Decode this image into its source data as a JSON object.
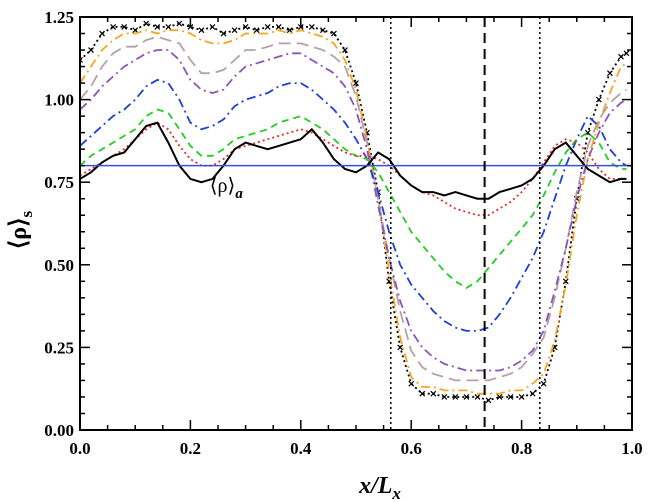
{
  "chart_data": {
    "type": "line",
    "xlabel": "x/L",
    "xlabel_sub": "x",
    "ylabel": "⟨ρ⟩",
    "ylabel_sub": "s",
    "xlim": [
      0.0,
      1.0
    ],
    "ylim": [
      0.0,
      1.25
    ],
    "x_ticks": [
      0.0,
      0.2,
      0.4,
      0.6,
      0.8,
      1.0
    ],
    "x_tick_labels": [
      "0.0",
      "0.2",
      "0.4",
      "0.6",
      "0.8",
      "1.0"
    ],
    "y_ticks": [
      0.0,
      0.25,
      0.5,
      0.75,
      1.0,
      1.25
    ],
    "y_tick_labels": [
      "0.00",
      "0.25",
      "0.50",
      "0.75",
      "1.00",
      "1.25"
    ],
    "grid": false,
    "annotations": [
      {
        "text": "⟨ρ⟩",
        "sub": "a",
        "x": 0.235,
        "y": 0.72
      }
    ],
    "reference_lines": [
      {
        "name": "average density",
        "orientation": "horizontal",
        "value": 0.8,
        "color": "#3b4fd9",
        "style": "solid"
      },
      {
        "name": "left dotted marker",
        "orientation": "vertical",
        "value": 0.563,
        "color": "#000000",
        "style": "dotted"
      },
      {
        "name": "center dashed marker",
        "orientation": "vertical",
        "value": 0.733,
        "color": "#000000",
        "style": "dashed"
      },
      {
        "name": "right dotted marker",
        "orientation": "vertical",
        "value": 0.833,
        "color": "#000000",
        "style": "dotted"
      }
    ],
    "series": [
      {
        "name": "crosses",
        "color": "#000000",
        "style": "dotted",
        "marker": "x",
        "x": [
          0.0,
          0.02,
          0.04,
          0.06,
          0.08,
          0.1,
          0.12,
          0.14,
          0.16,
          0.18,
          0.2,
          0.22,
          0.24,
          0.26,
          0.28,
          0.3,
          0.32,
          0.34,
          0.36,
          0.38,
          0.4,
          0.42,
          0.44,
          0.46,
          0.48,
          0.5,
          0.52,
          0.54,
          0.56,
          0.58,
          0.6,
          0.62,
          0.64,
          0.66,
          0.68,
          0.7,
          0.72,
          0.74,
          0.76,
          0.78,
          0.8,
          0.82,
          0.84,
          0.86,
          0.88,
          0.9,
          0.92,
          0.94,
          0.96,
          0.98,
          0.99
        ],
        "y": [
          1.12,
          1.15,
          1.2,
          1.22,
          1.22,
          1.21,
          1.23,
          1.22,
          1.22,
          1.23,
          1.22,
          1.21,
          1.22,
          1.2,
          1.21,
          1.22,
          1.21,
          1.22,
          1.22,
          1.21,
          1.22,
          1.22,
          1.21,
          1.2,
          1.15,
          1.05,
          0.9,
          0.72,
          0.45,
          0.25,
          0.14,
          0.11,
          0.11,
          0.1,
          0.1,
          0.1,
          0.1,
          0.09,
          0.1,
          0.1,
          0.1,
          0.11,
          0.14,
          0.25,
          0.45,
          0.7,
          0.9,
          1.0,
          1.08,
          1.13,
          1.14
        ]
      },
      {
        "name": "orange dash-dot",
        "color": "#f5a623",
        "style": "dashdot",
        "x": [
          0.0,
          0.02,
          0.04,
          0.06,
          0.08,
          0.1,
          0.12,
          0.14,
          0.16,
          0.18,
          0.2,
          0.22,
          0.24,
          0.26,
          0.28,
          0.3,
          0.32,
          0.34,
          0.36,
          0.38,
          0.4,
          0.42,
          0.44,
          0.46,
          0.48,
          0.5,
          0.52,
          0.54,
          0.56,
          0.58,
          0.6,
          0.62,
          0.64,
          0.66,
          0.68,
          0.7,
          0.72,
          0.74,
          0.76,
          0.78,
          0.8,
          0.82,
          0.84,
          0.86,
          0.88,
          0.9,
          0.92,
          0.94,
          0.96,
          0.98,
          0.99
        ],
        "y": [
          1.05,
          1.1,
          1.15,
          1.18,
          1.2,
          1.2,
          1.21,
          1.2,
          1.21,
          1.21,
          1.2,
          1.18,
          1.17,
          1.17,
          1.18,
          1.2,
          1.2,
          1.2,
          1.21,
          1.2,
          1.21,
          1.2,
          1.19,
          1.17,
          1.12,
          1.03,
          0.88,
          0.7,
          0.48,
          0.28,
          0.16,
          0.13,
          0.13,
          0.12,
          0.12,
          0.12,
          0.11,
          0.11,
          0.11,
          0.12,
          0.12,
          0.14,
          0.17,
          0.27,
          0.44,
          0.65,
          0.82,
          0.93,
          1.02,
          1.1,
          1.11
        ]
      },
      {
        "name": "gray long-dash",
        "color": "#b5a0a6",
        "style": "longdash",
        "x": [
          0.0,
          0.02,
          0.04,
          0.06,
          0.08,
          0.1,
          0.12,
          0.14,
          0.16,
          0.18,
          0.2,
          0.22,
          0.24,
          0.26,
          0.28,
          0.3,
          0.32,
          0.34,
          0.36,
          0.38,
          0.4,
          0.42,
          0.44,
          0.46,
          0.48,
          0.5,
          0.52,
          0.54,
          0.56,
          0.58,
          0.6,
          0.62,
          0.64,
          0.66,
          0.68,
          0.7,
          0.72,
          0.74,
          0.76,
          0.78,
          0.8,
          0.82,
          0.84,
          0.86,
          0.88,
          0.9,
          0.92,
          0.94,
          0.96,
          0.98,
          0.99
        ],
        "y": [
          1.0,
          1.04,
          1.1,
          1.14,
          1.16,
          1.16,
          1.18,
          1.19,
          1.18,
          1.17,
          1.12,
          1.08,
          1.08,
          1.09,
          1.12,
          1.15,
          1.15,
          1.16,
          1.17,
          1.17,
          1.17,
          1.16,
          1.15,
          1.13,
          1.1,
          1.01,
          0.87,
          0.7,
          0.52,
          0.36,
          0.24,
          0.19,
          0.17,
          0.16,
          0.15,
          0.15,
          0.15,
          0.15,
          0.16,
          0.17,
          0.19,
          0.23,
          0.28,
          0.4,
          0.55,
          0.72,
          0.86,
          0.94,
          0.99,
          1.02,
          1.03
        ]
      },
      {
        "name": "purple dash-dot",
        "color": "#8b55b8",
        "style": "dashdot",
        "x": [
          0.0,
          0.02,
          0.04,
          0.06,
          0.08,
          0.1,
          0.12,
          0.14,
          0.16,
          0.18,
          0.2,
          0.22,
          0.24,
          0.26,
          0.28,
          0.3,
          0.32,
          0.34,
          0.36,
          0.38,
          0.4,
          0.42,
          0.44,
          0.46,
          0.48,
          0.5,
          0.52,
          0.54,
          0.56,
          0.58,
          0.6,
          0.62,
          0.64,
          0.66,
          0.68,
          0.7,
          0.72,
          0.74,
          0.76,
          0.78,
          0.8,
          0.82,
          0.84,
          0.86,
          0.88,
          0.9,
          0.92,
          0.94,
          0.96,
          0.98,
          0.99
        ],
        "y": [
          0.97,
          1.0,
          1.04,
          1.07,
          1.1,
          1.12,
          1.14,
          1.15,
          1.15,
          1.12,
          1.06,
          1.03,
          1.02,
          1.03,
          1.07,
          1.1,
          1.11,
          1.12,
          1.13,
          1.14,
          1.14,
          1.12,
          1.1,
          1.08,
          1.04,
          0.97,
          0.85,
          0.68,
          0.52,
          0.39,
          0.3,
          0.25,
          0.22,
          0.2,
          0.19,
          0.18,
          0.18,
          0.18,
          0.18,
          0.19,
          0.21,
          0.24,
          0.3,
          0.42,
          0.55,
          0.7,
          0.82,
          0.9,
          0.96,
          0.99,
          1.0
        ]
      },
      {
        "name": "blue dash-dot",
        "color": "#1f3fd6",
        "style": "dashdot",
        "x": [
          0.0,
          0.02,
          0.04,
          0.06,
          0.08,
          0.1,
          0.12,
          0.14,
          0.16,
          0.18,
          0.2,
          0.22,
          0.24,
          0.26,
          0.28,
          0.3,
          0.32,
          0.34,
          0.36,
          0.38,
          0.4,
          0.42,
          0.44,
          0.46,
          0.48,
          0.5,
          0.52,
          0.54,
          0.56,
          0.58,
          0.6,
          0.62,
          0.64,
          0.66,
          0.68,
          0.7,
          0.72,
          0.74,
          0.76,
          0.78,
          0.8,
          0.82,
          0.84,
          0.86,
          0.88,
          0.9,
          0.92,
          0.94,
          0.96,
          0.98,
          0.99
        ],
        "y": [
          0.86,
          0.89,
          0.92,
          0.95,
          0.97,
          1.0,
          1.04,
          1.06,
          1.05,
          1.0,
          0.93,
          0.91,
          0.92,
          0.94,
          0.98,
          1.0,
          1.01,
          1.02,
          1.04,
          1.05,
          1.05,
          1.03,
          1.0,
          0.97,
          0.93,
          0.88,
          0.82,
          0.72,
          0.6,
          0.5,
          0.44,
          0.4,
          0.36,
          0.33,
          0.31,
          0.3,
          0.3,
          0.31,
          0.35,
          0.4,
          0.46,
          0.52,
          0.6,
          0.7,
          0.8,
          0.88,
          0.95,
          0.92,
          0.85,
          0.81,
          0.8
        ]
      },
      {
        "name": "green dashed",
        "color": "#22cc22",
        "style": "dashed",
        "x": [
          0.0,
          0.02,
          0.04,
          0.06,
          0.08,
          0.1,
          0.12,
          0.14,
          0.16,
          0.18,
          0.2,
          0.22,
          0.24,
          0.26,
          0.28,
          0.3,
          0.32,
          0.34,
          0.36,
          0.38,
          0.4,
          0.42,
          0.44,
          0.46,
          0.48,
          0.5,
          0.52,
          0.54,
          0.56,
          0.58,
          0.6,
          0.62,
          0.64,
          0.66,
          0.68,
          0.7,
          0.72,
          0.74,
          0.76,
          0.78,
          0.8,
          0.82,
          0.84,
          0.86,
          0.88,
          0.9,
          0.92,
          0.94,
          0.96,
          0.98,
          0.99
        ],
        "y": [
          0.8,
          0.83,
          0.85,
          0.87,
          0.89,
          0.91,
          0.95,
          0.97,
          0.96,
          0.91,
          0.86,
          0.83,
          0.83,
          0.85,
          0.88,
          0.89,
          0.9,
          0.91,
          0.93,
          0.94,
          0.95,
          0.93,
          0.91,
          0.88,
          0.85,
          0.83,
          0.82,
          0.78,
          0.72,
          0.66,
          0.6,
          0.56,
          0.52,
          0.48,
          0.45,
          0.43,
          0.45,
          0.49,
          0.53,
          0.57,
          0.61,
          0.65,
          0.71,
          0.78,
          0.84,
          0.88,
          0.9,
          0.87,
          0.81,
          0.79,
          0.79
        ]
      },
      {
        "name": "red dotted",
        "color": "#e0302a",
        "style": "dotted",
        "x": [
          0.0,
          0.02,
          0.04,
          0.06,
          0.08,
          0.1,
          0.12,
          0.14,
          0.16,
          0.18,
          0.2,
          0.22,
          0.24,
          0.26,
          0.28,
          0.3,
          0.32,
          0.34,
          0.36,
          0.38,
          0.4,
          0.42,
          0.44,
          0.46,
          0.48,
          0.5,
          0.52,
          0.54,
          0.56,
          0.58,
          0.6,
          0.62,
          0.64,
          0.66,
          0.68,
          0.7,
          0.72,
          0.74,
          0.76,
          0.78,
          0.8,
          0.82,
          0.84,
          0.86,
          0.88,
          0.9,
          0.92,
          0.94,
          0.96,
          0.98,
          0.99
        ],
        "y": [
          0.77,
          0.79,
          0.81,
          0.83,
          0.85,
          0.88,
          0.91,
          0.93,
          0.91,
          0.86,
          0.82,
          0.8,
          0.8,
          0.82,
          0.85,
          0.86,
          0.87,
          0.88,
          0.89,
          0.9,
          0.91,
          0.9,
          0.88,
          0.86,
          0.84,
          0.83,
          0.83,
          0.82,
          0.8,
          0.77,
          0.74,
          0.72,
          0.71,
          0.69,
          0.67,
          0.66,
          0.65,
          0.65,
          0.67,
          0.69,
          0.72,
          0.76,
          0.81,
          0.86,
          0.88,
          0.87,
          0.84,
          0.79,
          0.76,
          0.76,
          0.76
        ]
      },
      {
        "name": "black solid",
        "color": "#000000",
        "style": "solid",
        "x": [
          0.0,
          0.02,
          0.04,
          0.06,
          0.08,
          0.1,
          0.12,
          0.14,
          0.16,
          0.18,
          0.2,
          0.22,
          0.24,
          0.26,
          0.28,
          0.3,
          0.32,
          0.34,
          0.36,
          0.38,
          0.4,
          0.42,
          0.44,
          0.46,
          0.48,
          0.5,
          0.52,
          0.54,
          0.56,
          0.58,
          0.6,
          0.62,
          0.64,
          0.66,
          0.68,
          0.7,
          0.72,
          0.74,
          0.76,
          0.78,
          0.8,
          0.82,
          0.84,
          0.86,
          0.88,
          0.9,
          0.92,
          0.94,
          0.96,
          0.98,
          0.99
        ],
        "y": [
          0.76,
          0.78,
          0.81,
          0.83,
          0.84,
          0.88,
          0.92,
          0.93,
          0.87,
          0.8,
          0.76,
          0.75,
          0.76,
          0.8,
          0.85,
          0.87,
          0.86,
          0.85,
          0.86,
          0.87,
          0.88,
          0.91,
          0.87,
          0.82,
          0.79,
          0.78,
          0.8,
          0.84,
          0.82,
          0.77,
          0.74,
          0.72,
          0.72,
          0.71,
          0.72,
          0.71,
          0.7,
          0.7,
          0.72,
          0.73,
          0.74,
          0.76,
          0.8,
          0.85,
          0.87,
          0.83,
          0.79,
          0.77,
          0.75,
          0.76,
          0.76
        ]
      }
    ]
  }
}
